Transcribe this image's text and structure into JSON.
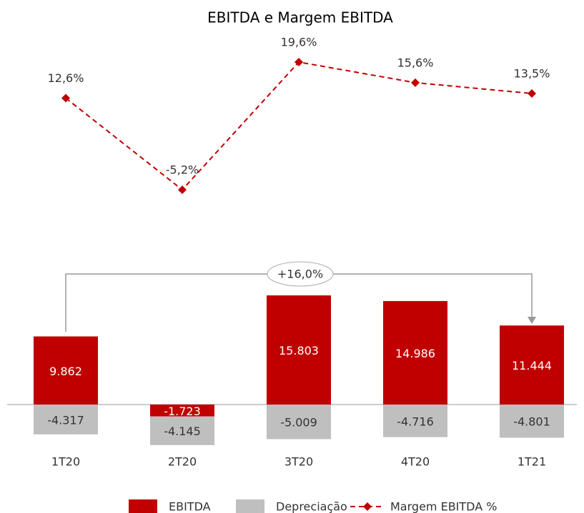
{
  "chart_data": {
    "type": "bar",
    "title": "EBITDA e Margem EBITDA",
    "categories": [
      "1T20",
      "2T20",
      "3T20",
      "4T20",
      "1T21"
    ],
    "series": [
      {
        "name": "EBITDA",
        "color": "#c00000",
        "values": [
          9862,
          -1723,
          15803,
          14986,
          11444
        ],
        "value_labels": [
          "9.862",
          "-1.723",
          "15.803",
          "14.986",
          "11.444"
        ]
      },
      {
        "name": "Depreciação",
        "color": "#bfbfbf",
        "values": [
          -4317,
          -4145,
          -5009,
          -4716,
          -4801
        ],
        "value_labels": [
          "-4.317",
          "-4.145",
          "-5.009",
          "-4.716",
          "-4.801"
        ]
      },
      {
        "name": "Margem EBITDA %",
        "type": "line",
        "color": "#c00000",
        "values": [
          12.6,
          -5.2,
          19.6,
          15.6,
          13.5
        ],
        "value_labels": [
          "12,6%",
          "-5,2%",
          "19,6%",
          "15,6%",
          "13,5%"
        ]
      }
    ],
    "annotations": [
      "+16,0%"
    ]
  }
}
